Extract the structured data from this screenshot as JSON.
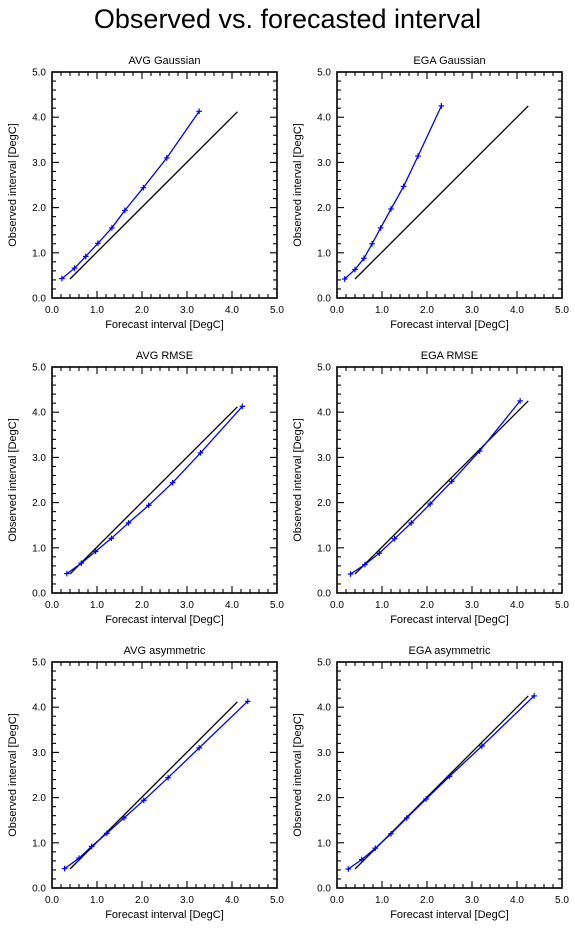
{
  "title": "Observed vs. forecasted interval",
  "colors": {
    "series": "#0000ff",
    "reference": "#000000",
    "frame": "#000000"
  },
  "chart_data": [
    {
      "type": "line",
      "title": "AVG Gaussian",
      "xlabel": "Forecast interval [DegC]",
      "ylabel": "Observed interval [DegC]",
      "xlim": [
        0,
        5
      ],
      "ylim": [
        0,
        5
      ],
      "xticks": [
        "0.0",
        "1.0",
        "2.0",
        "3.0",
        "4.0",
        "5.0"
      ],
      "yticks": [
        "0.0",
        "1.0",
        "2.0",
        "3.0",
        "4.0",
        "5.0"
      ],
      "grid": false,
      "reference_line": {
        "x": [
          0.4,
          4.12
        ],
        "y": [
          0.42,
          4.12
        ]
      },
      "series": [
        {
          "x": [
            0.22,
            0.5,
            0.75,
            1.02,
            1.33,
            1.62,
            2.03,
            2.55,
            3.27
          ],
          "y": [
            0.43,
            0.66,
            0.92,
            1.21,
            1.55,
            1.94,
            2.44,
            3.1,
            4.13
          ]
        }
      ]
    },
    {
      "type": "line",
      "title": "EGA Gaussian",
      "xlabel": "Forecast interval [DegC]",
      "ylabel": "Observed interval [DegC]",
      "xlim": [
        0,
        5
      ],
      "ylim": [
        0,
        5
      ],
      "xticks": [
        "0.0",
        "1.0",
        "2.0",
        "3.0",
        "4.0",
        "5.0"
      ],
      "yticks": [
        "0.0",
        "1.0",
        "2.0",
        "3.0",
        "4.0",
        "5.0"
      ],
      "grid": false,
      "reference_line": {
        "x": [
          0.4,
          4.25
        ],
        "y": [
          0.42,
          4.25
        ]
      },
      "series": [
        {
          "x": [
            0.17,
            0.4,
            0.6,
            0.78,
            0.97,
            1.2,
            1.48,
            1.8,
            2.32
          ],
          "y": [
            0.42,
            0.63,
            0.88,
            1.2,
            1.55,
            1.97,
            2.47,
            3.14,
            4.25
          ]
        }
      ]
    },
    {
      "type": "line",
      "title": "AVG RMSE",
      "xlabel": "Forecast interval [DegC]",
      "ylabel": "Observed interval [DegC]",
      "xlim": [
        0,
        5
      ],
      "ylim": [
        0,
        5
      ],
      "xticks": [
        "0.0",
        "1.0",
        "2.0",
        "3.0",
        "4.0",
        "5.0"
      ],
      "yticks": [
        "0.0",
        "1.0",
        "2.0",
        "3.0",
        "4.0",
        "5.0"
      ],
      "grid": false,
      "reference_line": {
        "x": [
          0.4,
          4.12
        ],
        "y": [
          0.42,
          4.12
        ]
      },
      "series": [
        {
          "x": [
            0.33,
            0.65,
            0.97,
            1.32,
            1.7,
            2.15,
            2.68,
            3.3,
            4.23
          ],
          "y": [
            0.43,
            0.66,
            0.92,
            1.21,
            1.55,
            1.94,
            2.44,
            3.1,
            4.13
          ]
        }
      ]
    },
    {
      "type": "line",
      "title": "EGA RMSE",
      "xlabel": "Forecast interval [DegC]",
      "ylabel": "Observed interval [DegC]",
      "xlim": [
        0,
        5
      ],
      "ylim": [
        0,
        5
      ],
      "xticks": [
        "0.0",
        "1.0",
        "2.0",
        "3.0",
        "4.0",
        "5.0"
      ],
      "yticks": [
        "0.0",
        "1.0",
        "2.0",
        "3.0",
        "4.0",
        "5.0"
      ],
      "grid": false,
      "reference_line": {
        "x": [
          0.4,
          4.25
        ],
        "y": [
          0.42,
          4.25
        ]
      },
      "series": [
        {
          "x": [
            0.3,
            0.62,
            0.94,
            1.28,
            1.65,
            2.07,
            2.55,
            3.17,
            4.07
          ],
          "y": [
            0.42,
            0.63,
            0.88,
            1.2,
            1.55,
            1.97,
            2.47,
            3.14,
            4.25
          ]
        }
      ]
    },
    {
      "type": "line",
      "title": "AVG asymmetric",
      "xlabel": "Forecast interval [DegC]",
      "ylabel": "Observed interval [DegC]",
      "xlim": [
        0,
        5
      ],
      "ylim": [
        0,
        5
      ],
      "xticks": [
        "0.0",
        "1.0",
        "2.0",
        "3.0",
        "4.0",
        "5.0"
      ],
      "yticks": [
        "0.0",
        "1.0",
        "2.0",
        "3.0",
        "4.0",
        "5.0"
      ],
      "grid": false,
      "reference_line": {
        "x": [
          0.4,
          4.12
        ],
        "y": [
          0.42,
          4.12
        ]
      },
      "series": [
        {
          "x": [
            0.28,
            0.6,
            0.88,
            1.22,
            1.6,
            2.04,
            2.58,
            3.27,
            4.35
          ],
          "y": [
            0.43,
            0.66,
            0.92,
            1.21,
            1.55,
            1.94,
            2.44,
            3.1,
            4.13
          ]
        }
      ]
    },
    {
      "type": "line",
      "title": "EGA asymmetric",
      "xlabel": "Forecast interval [DegC]",
      "ylabel": "Observed interval [DegC]",
      "xlim": [
        0,
        5
      ],
      "ylim": [
        0,
        5
      ],
      "xticks": [
        "0.0",
        "1.0",
        "2.0",
        "3.0",
        "4.0",
        "5.0"
      ],
      "yticks": [
        "0.0",
        "1.0",
        "2.0",
        "3.0",
        "4.0",
        "5.0"
      ],
      "grid": false,
      "reference_line": {
        "x": [
          0.4,
          4.25
        ],
        "y": [
          0.42,
          4.25
        ]
      },
      "series": [
        {
          "x": [
            0.25,
            0.55,
            0.85,
            1.2,
            1.55,
            1.98,
            2.5,
            3.22,
            4.38
          ],
          "y": [
            0.42,
            0.63,
            0.88,
            1.2,
            1.55,
            1.97,
            2.47,
            3.14,
            4.25
          ]
        }
      ]
    }
  ]
}
